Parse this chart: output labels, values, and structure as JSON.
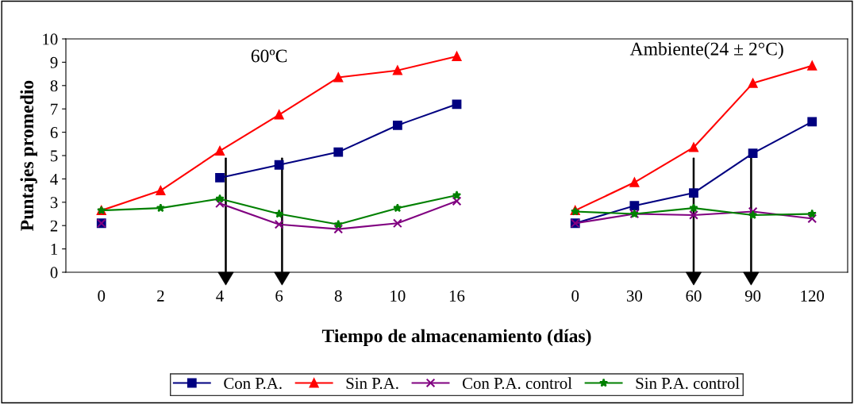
{
  "chart_data": {
    "type": "line",
    "xlabel": "Tiempo de almacenamiento (días)",
    "ylabel": "Puntajes promedio",
    "categories": [
      "0",
      "2",
      "4",
      "6",
      "8",
      "10",
      "16",
      null,
      "0",
      "30",
      "60",
      "90",
      "120"
    ],
    "series": [
      {
        "name": "Con P.A.",
        "color": "#000080",
        "marker": "square",
        "values": [
          2.1,
          null,
          4.05,
          4.6,
          5.15,
          6.3,
          7.2,
          null,
          2.1,
          2.85,
          3.4,
          5.1,
          6.45
        ]
      },
      {
        "name": "Sin P.A.",
        "color": "#ff0000",
        "marker": "triangle",
        "values": [
          2.65,
          3.5,
          5.2,
          6.75,
          8.35,
          8.65,
          9.25,
          null,
          2.65,
          3.85,
          5.35,
          8.1,
          8.85
        ]
      },
      {
        "name": "Con P.A. control",
        "color": "#800080",
        "marker": "cross",
        "values": [
          2.1,
          null,
          2.95,
          2.05,
          1.85,
          2.1,
          3.05,
          null,
          2.1,
          2.5,
          2.45,
          2.6,
          2.3
        ]
      },
      {
        "name": "Sin P.A. control",
        "color": "#008000",
        "marker": "star",
        "values": [
          2.65,
          2.75,
          3.15,
          2.5,
          2.05,
          2.75,
          3.3,
          null,
          2.6,
          2.5,
          2.75,
          2.45,
          2.5
        ]
      }
    ],
    "ylim": [
      0,
      10
    ],
    "yticks": [
      0,
      1,
      2,
      3,
      4,
      5,
      6,
      7,
      8,
      9,
      10
    ],
    "annotations": [
      "60ºC",
      "Ambiente(24 ± 2°C)"
    ],
    "legend": "bottom",
    "grid": false
  }
}
